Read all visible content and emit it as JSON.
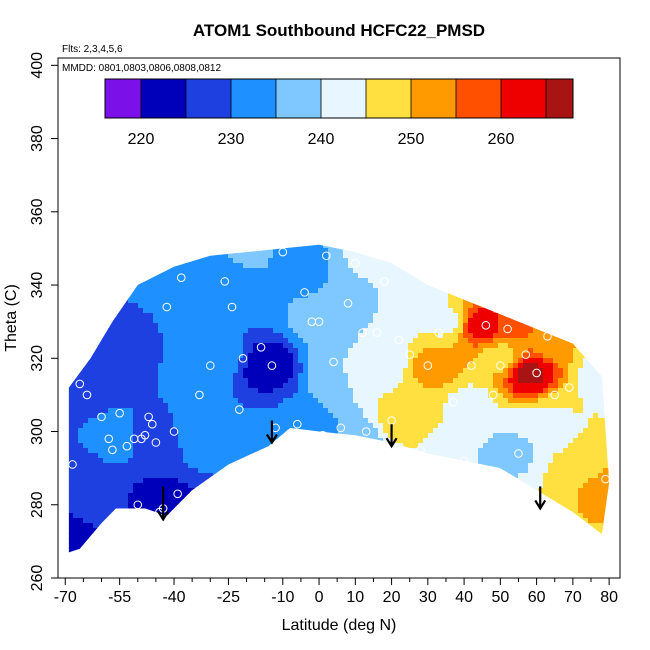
{
  "chart_data": {
    "type": "heatmap",
    "title": "ATOM1 Southbound HCFC22_PMSD",
    "annotations": [
      "Flts: 2,3,4,5,6",
      "MMDD: 0801,0803,0806,0808,0812"
    ],
    "xlabel": "Latitude (deg N)",
    "ylabel": "Theta (C)",
    "xlim": [
      -72,
      83
    ],
    "ylim": [
      260,
      402
    ],
    "x_ticks": [
      -70,
      -55,
      -40,
      -25,
      -10,
      0,
      10,
      20,
      30,
      40,
      50,
      60,
      70,
      80
    ],
    "x_ticks_minor": [
      -65,
      -60,
      -50,
      -45,
      -35,
      -30,
      -20,
      -15,
      -5,
      5,
      15,
      25,
      35,
      45,
      55,
      65,
      75
    ],
    "y_ticks": [
      260,
      280,
      300,
      320,
      340,
      360,
      380,
      400
    ],
    "colorbar": {
      "min": 216,
      "max": 268,
      "ticks": [
        220,
        230,
        240,
        250,
        260
      ],
      "bins": [
        {
          "from": 216,
          "to": 220,
          "color": "#7b10e8"
        },
        {
          "from": 220,
          "to": 225,
          "color": "#0000bb"
        },
        {
          "from": 225,
          "to": 230,
          "color": "#1f40e0"
        },
        {
          "from": 230,
          "to": 235,
          "color": "#1e90ff"
        },
        {
          "from": 235,
          "to": 240,
          "color": "#7ec8ff"
        },
        {
          "from": 240,
          "to": 245,
          "color": "#e8f6ff"
        },
        {
          "from": 245,
          "to": 250,
          "color": "#ffe040"
        },
        {
          "from": 250,
          "to": 255,
          "color": "#ff9a00"
        },
        {
          "from": 255,
          "to": 260,
          "color": "#ff5000"
        },
        {
          "from": 260,
          "to": 265,
          "color": "#ee0000"
        },
        {
          "from": 265,
          "to": 268,
          "color": "#a81414"
        }
      ]
    },
    "field_nodes": [
      {
        "x": -68,
        "y": 267,
        "v": 222
      },
      {
        "x": -68,
        "y": 290,
        "v": 228
      },
      {
        "x": -68,
        "y": 310,
        "v": 227
      },
      {
        "x": -58,
        "y": 280,
        "v": 226
      },
      {
        "x": -57,
        "y": 298,
        "v": 232
      },
      {
        "x": -55,
        "y": 322,
        "v": 229
      },
      {
        "x": -45,
        "y": 278,
        "v": 221
      },
      {
        "x": -45,
        "y": 298,
        "v": 228
      },
      {
        "x": -42,
        "y": 338,
        "v": 230
      },
      {
        "x": -32,
        "y": 300,
        "v": 233
      },
      {
        "x": -28,
        "y": 320,
        "v": 233
      },
      {
        "x": -25,
        "y": 342,
        "v": 231
      },
      {
        "x": -20,
        "y": 348,
        "v": 236
      },
      {
        "x": -14,
        "y": 318,
        "v": 222
      },
      {
        "x": -12,
        "y": 300,
        "v": 230
      },
      {
        "x": -5,
        "y": 345,
        "v": 233
      },
      {
        "x": 0,
        "y": 300,
        "v": 234
      },
      {
        "x": 0,
        "y": 330,
        "v": 236
      },
      {
        "x": 5,
        "y": 318,
        "v": 240
      },
      {
        "x": 8,
        "y": 340,
        "v": 235
      },
      {
        "x": 12,
        "y": 299,
        "v": 238
      },
      {
        "x": 15,
        "y": 345,
        "v": 245
      },
      {
        "x": 18,
        "y": 320,
        "v": 242
      },
      {
        "x": 22,
        "y": 303,
        "v": 248
      },
      {
        "x": 25,
        "y": 335,
        "v": 241
      },
      {
        "x": 28,
        "y": 296,
        "v": 245
      },
      {
        "x": 32,
        "y": 318,
        "v": 252
      },
      {
        "x": 35,
        "y": 330,
        "v": 244
      },
      {
        "x": 40,
        "y": 292,
        "v": 240
      },
      {
        "x": 42,
        "y": 308,
        "v": 244
      },
      {
        "x": 45,
        "y": 329,
        "v": 262
      },
      {
        "x": 50,
        "y": 320,
        "v": 248
      },
      {
        "x": 52,
        "y": 294,
        "v": 239
      },
      {
        "x": 55,
        "y": 330,
        "v": 256
      },
      {
        "x": 58,
        "y": 316,
        "v": 266
      },
      {
        "x": 60,
        "y": 300,
        "v": 240
      },
      {
        "x": 65,
        "y": 325,
        "v": 250
      },
      {
        "x": 68,
        "y": 305,
        "v": 245
      },
      {
        "x": 72,
        "y": 290,
        "v": 248
      },
      {
        "x": 78,
        "y": 285,
        "v": 251
      },
      {
        "x": 78,
        "y": 315,
        "v": 243
      }
    ],
    "samples": [
      {
        "x": -68,
        "y": 291
      },
      {
        "x": -66,
        "y": 313
      },
      {
        "x": -64,
        "y": 310
      },
      {
        "x": -60,
        "y": 304
      },
      {
        "x": -58,
        "y": 298
      },
      {
        "x": -57,
        "y": 295
      },
      {
        "x": -55,
        "y": 305
      },
      {
        "x": -53,
        "y": 296
      },
      {
        "x": -51,
        "y": 298
      },
      {
        "x": -50,
        "y": 280
      },
      {
        "x": -49,
        "y": 298
      },
      {
        "x": -48,
        "y": 299
      },
      {
        "x": -47,
        "y": 304
      },
      {
        "x": -46,
        "y": 302
      },
      {
        "x": -45,
        "y": 297
      },
      {
        "x": -44,
        "y": 278
      },
      {
        "x": -43,
        "y": 279
      },
      {
        "x": -42,
        "y": 334
      },
      {
        "x": -40,
        "y": 300
      },
      {
        "x": -39,
        "y": 283
      },
      {
        "x": -38,
        "y": 342
      },
      {
        "x": -33,
        "y": 310
      },
      {
        "x": -30,
        "y": 318
      },
      {
        "x": -26,
        "y": 341
      },
      {
        "x": -24,
        "y": 334
      },
      {
        "x": -22,
        "y": 306
      },
      {
        "x": -21,
        "y": 320
      },
      {
        "x": -16,
        "y": 323
      },
      {
        "x": -13,
        "y": 318
      },
      {
        "x": -12,
        "y": 301
      },
      {
        "x": -10,
        "y": 349
      },
      {
        "x": -6,
        "y": 302
      },
      {
        "x": -4,
        "y": 338
      },
      {
        "x": -2,
        "y": 330
      },
      {
        "x": 0,
        "y": 330
      },
      {
        "x": 1,
        "y": 299
      },
      {
        "x": 2,
        "y": 348
      },
      {
        "x": 4,
        "y": 319
      },
      {
        "x": 6,
        "y": 301
      },
      {
        "x": 8,
        "y": 335
      },
      {
        "x": 10,
        "y": 346
      },
      {
        "x": 12,
        "y": 327
      },
      {
        "x": 13,
        "y": 300
      },
      {
        "x": 16,
        "y": 327
      },
      {
        "x": 18,
        "y": 341
      },
      {
        "x": 20,
        "y": 303
      },
      {
        "x": 22,
        "y": 325
      },
      {
        "x": 25,
        "y": 321
      },
      {
        "x": 28,
        "y": 295
      },
      {
        "x": 30,
        "y": 318
      },
      {
        "x": 33,
        "y": 327
      },
      {
        "x": 37,
        "y": 308
      },
      {
        "x": 40,
        "y": 292
      },
      {
        "x": 42,
        "y": 318
      },
      {
        "x": 46,
        "y": 329
      },
      {
        "x": 48,
        "y": 310
      },
      {
        "x": 50,
        "y": 318
      },
      {
        "x": 52,
        "y": 328
      },
      {
        "x": 55,
        "y": 294
      },
      {
        "x": 57,
        "y": 321
      },
      {
        "x": 60,
        "y": 316
      },
      {
        "x": 63,
        "y": 326
      },
      {
        "x": 65,
        "y": 310
      },
      {
        "x": 69,
        "y": 312
      },
      {
        "x": 75,
        "y": 325
      },
      {
        "x": 79,
        "y": 287
      }
    ],
    "arrows": [
      {
        "x": -43,
        "y_top": 285,
        "y_bottom": 276
      },
      {
        "x": -13,
        "y_top": 303,
        "y_bottom": 297
      },
      {
        "x": 20,
        "y_top": 302,
        "y_bottom": 296
      },
      {
        "x": 61,
        "y_top": 285,
        "y_bottom": 279
      }
    ],
    "domain_outline": [
      [
        -69,
        267
      ],
      [
        -69,
        312
      ],
      [
        -63,
        320
      ],
      [
        -57,
        330
      ],
      [
        -50,
        340
      ],
      [
        -40,
        345
      ],
      [
        -30,
        348
      ],
      [
        -20,
        349
      ],
      [
        -10,
        350
      ],
      [
        0,
        351
      ],
      [
        10,
        349
      ],
      [
        20,
        346
      ],
      [
        30,
        340
      ],
      [
        40,
        336
      ],
      [
        50,
        332
      ],
      [
        60,
        328
      ],
      [
        70,
        324
      ],
      [
        78,
        315
      ],
      [
        80,
        286
      ],
      [
        78,
        272
      ],
      [
        70,
        278
      ],
      [
        60,
        284
      ],
      [
        50,
        290
      ],
      [
        40,
        292
      ],
      [
        30,
        294
      ],
      [
        20,
        297
      ],
      [
        10,
        299
      ],
      [
        0,
        300
      ],
      [
        -8,
        301
      ],
      [
        -14,
        296
      ],
      [
        -25,
        291
      ],
      [
        -35,
        284
      ],
      [
        -42,
        277
      ],
      [
        -48,
        279
      ],
      [
        -56,
        279
      ],
      [
        -60,
        275
      ],
      [
        -66,
        268
      ]
    ]
  }
}
